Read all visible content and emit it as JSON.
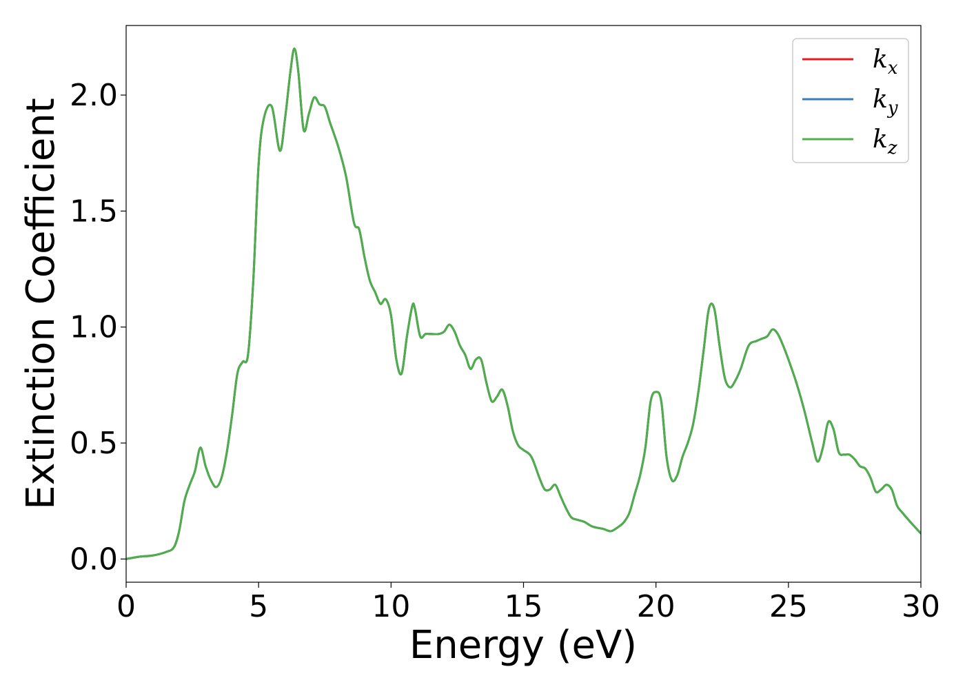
{
  "chart_data": {
    "type": "line",
    "xlabel": "Energy (eV)",
    "ylabel": "Extinction Coefficient",
    "xlim": [
      0,
      30
    ],
    "ylim": [
      -0.1,
      2.3
    ],
    "xticks": [
      0,
      5,
      10,
      15,
      20,
      25,
      30
    ],
    "xtick_labels": [
      "0",
      "5",
      "10",
      "15",
      "20",
      "25",
      "30"
    ],
    "yticks": [
      0.0,
      0.5,
      1.0,
      1.5,
      2.0
    ],
    "ytick_labels": [
      "0.0",
      "0.5",
      "1.0",
      "1.5",
      "2.0"
    ],
    "grid": false,
    "legend": {
      "placement": "top-right",
      "entries": [
        {
          "base": "k",
          "sub": "x",
          "color": "#e41a1c"
        },
        {
          "base": "k",
          "sub": "y",
          "color": "#377eb8"
        },
        {
          "base": "k",
          "sub": "z",
          "color": "#4daf4a"
        }
      ]
    },
    "x": [
      0,
      0.5,
      1.0,
      1.5,
      1.8,
      2.0,
      2.2,
      2.4,
      2.6,
      2.8,
      3.0,
      3.2,
      3.4,
      3.6,
      3.8,
      4.0,
      4.2,
      4.4,
      4.6,
      4.8,
      5.0,
      5.2,
      5.5,
      5.8,
      6.0,
      6.2,
      6.35,
      6.5,
      6.7,
      6.9,
      7.1,
      7.3,
      7.5,
      7.7,
      8.0,
      8.3,
      8.6,
      8.8,
      9.0,
      9.2,
      9.4,
      9.6,
      9.8,
      10.0,
      10.2,
      10.4,
      10.6,
      10.8,
      10.9,
      11.1,
      11.3,
      11.5,
      11.8,
      12.0,
      12.2,
      12.4,
      12.6,
      12.8,
      13.0,
      13.2,
      13.4,
      13.6,
      13.8,
      14.0,
      14.2,
      14.4,
      14.6,
      14.8,
      15.0,
      15.3,
      15.6,
      15.8,
      16.0,
      16.2,
      16.4,
      16.6,
      16.8,
      17.0,
      17.3,
      17.6,
      18.0,
      18.3,
      18.6,
      18.8,
      19.0,
      19.2,
      19.4,
      19.6,
      19.8,
      20.0,
      20.2,
      20.4,
      20.6,
      20.8,
      21.0,
      21.2,
      21.4,
      21.6,
      21.8,
      22.0,
      22.2,
      22.4,
      22.6,
      22.8,
      23.0,
      23.2,
      23.5,
      23.8,
      24.0,
      24.2,
      24.4,
      24.6,
      24.8,
      25.0,
      25.3,
      25.6,
      25.9,
      26.1,
      26.3,
      26.5,
      26.7,
      26.9,
      27.1,
      27.3,
      27.5,
      27.7,
      27.9,
      28.1,
      28.3,
      28.5,
      28.7,
      28.9,
      29.1,
      29.3,
      29.6,
      30.0
    ],
    "series": [
      {
        "name": "k_x",
        "color": "#e41a1c",
        "values": [
          0.0,
          0.01,
          0.015,
          0.03,
          0.05,
          0.12,
          0.25,
          0.32,
          0.38,
          0.48,
          0.4,
          0.34,
          0.31,
          0.35,
          0.46,
          0.62,
          0.8,
          0.85,
          0.88,
          1.2,
          1.7,
          1.9,
          1.95,
          1.76,
          1.9,
          2.1,
          2.2,
          2.1,
          1.85,
          1.92,
          1.99,
          1.96,
          1.95,
          1.88,
          1.78,
          1.65,
          1.45,
          1.42,
          1.3,
          1.2,
          1.15,
          1.1,
          1.12,
          1.05,
          0.86,
          0.8,
          0.96,
          1.09,
          1.08,
          0.96,
          0.97,
          0.97,
          0.97,
          0.98,
          1.01,
          0.98,
          0.92,
          0.88,
          0.82,
          0.86,
          0.86,
          0.76,
          0.68,
          0.7,
          0.73,
          0.66,
          0.55,
          0.49,
          0.47,
          0.44,
          0.35,
          0.3,
          0.3,
          0.32,
          0.27,
          0.22,
          0.18,
          0.17,
          0.16,
          0.14,
          0.13,
          0.12,
          0.14,
          0.16,
          0.2,
          0.28,
          0.36,
          0.48,
          0.68,
          0.72,
          0.68,
          0.44,
          0.34,
          0.36,
          0.44,
          0.5,
          0.58,
          0.72,
          0.9,
          1.08,
          1.08,
          0.92,
          0.78,
          0.74,
          0.77,
          0.82,
          0.92,
          0.94,
          0.95,
          0.96,
          0.99,
          0.97,
          0.92,
          0.86,
          0.76,
          0.64,
          0.5,
          0.42,
          0.48,
          0.59,
          0.56,
          0.46,
          0.45,
          0.45,
          0.43,
          0.4,
          0.39,
          0.35,
          0.29,
          0.3,
          0.32,
          0.3,
          0.23,
          0.2,
          0.16,
          0.11
        ]
      },
      {
        "name": "k_y",
        "color": "#377eb8",
        "values": [
          0.0,
          0.01,
          0.015,
          0.03,
          0.05,
          0.12,
          0.25,
          0.32,
          0.38,
          0.48,
          0.4,
          0.34,
          0.31,
          0.35,
          0.46,
          0.62,
          0.8,
          0.85,
          0.88,
          1.2,
          1.7,
          1.9,
          1.95,
          1.76,
          1.9,
          2.1,
          2.2,
          2.1,
          1.85,
          1.92,
          1.99,
          1.96,
          1.95,
          1.88,
          1.78,
          1.65,
          1.45,
          1.42,
          1.3,
          1.2,
          1.15,
          1.1,
          1.12,
          1.05,
          0.86,
          0.8,
          0.96,
          1.09,
          1.08,
          0.96,
          0.97,
          0.97,
          0.97,
          0.98,
          1.01,
          0.98,
          0.92,
          0.88,
          0.82,
          0.86,
          0.86,
          0.76,
          0.68,
          0.7,
          0.73,
          0.66,
          0.55,
          0.49,
          0.47,
          0.44,
          0.35,
          0.3,
          0.3,
          0.32,
          0.27,
          0.22,
          0.18,
          0.17,
          0.16,
          0.14,
          0.13,
          0.12,
          0.14,
          0.16,
          0.2,
          0.28,
          0.36,
          0.48,
          0.68,
          0.72,
          0.68,
          0.44,
          0.34,
          0.36,
          0.44,
          0.5,
          0.58,
          0.72,
          0.9,
          1.08,
          1.08,
          0.92,
          0.78,
          0.74,
          0.77,
          0.82,
          0.92,
          0.94,
          0.95,
          0.96,
          0.99,
          0.97,
          0.92,
          0.86,
          0.76,
          0.64,
          0.5,
          0.42,
          0.48,
          0.59,
          0.56,
          0.46,
          0.45,
          0.45,
          0.43,
          0.4,
          0.39,
          0.35,
          0.29,
          0.3,
          0.32,
          0.3,
          0.23,
          0.2,
          0.16,
          0.11
        ]
      },
      {
        "name": "k_z",
        "color": "#4daf4a",
        "values": [
          0.0,
          0.01,
          0.015,
          0.03,
          0.05,
          0.12,
          0.25,
          0.32,
          0.38,
          0.48,
          0.4,
          0.34,
          0.31,
          0.35,
          0.46,
          0.62,
          0.8,
          0.85,
          0.88,
          1.2,
          1.7,
          1.9,
          1.95,
          1.76,
          1.9,
          2.1,
          2.2,
          2.1,
          1.85,
          1.92,
          1.99,
          1.96,
          1.95,
          1.88,
          1.78,
          1.65,
          1.45,
          1.42,
          1.3,
          1.2,
          1.15,
          1.1,
          1.12,
          1.05,
          0.86,
          0.8,
          0.96,
          1.09,
          1.08,
          0.96,
          0.97,
          0.97,
          0.97,
          0.98,
          1.01,
          0.98,
          0.92,
          0.88,
          0.82,
          0.86,
          0.86,
          0.76,
          0.68,
          0.7,
          0.73,
          0.66,
          0.55,
          0.49,
          0.47,
          0.44,
          0.35,
          0.3,
          0.3,
          0.32,
          0.27,
          0.22,
          0.18,
          0.17,
          0.16,
          0.14,
          0.13,
          0.12,
          0.14,
          0.16,
          0.2,
          0.28,
          0.36,
          0.48,
          0.68,
          0.72,
          0.68,
          0.44,
          0.34,
          0.36,
          0.44,
          0.5,
          0.58,
          0.72,
          0.9,
          1.08,
          1.08,
          0.92,
          0.78,
          0.74,
          0.77,
          0.82,
          0.92,
          0.94,
          0.95,
          0.96,
          0.99,
          0.97,
          0.92,
          0.86,
          0.76,
          0.64,
          0.5,
          0.42,
          0.48,
          0.59,
          0.56,
          0.46,
          0.45,
          0.45,
          0.43,
          0.4,
          0.39,
          0.35,
          0.29,
          0.3,
          0.32,
          0.3,
          0.23,
          0.2,
          0.16,
          0.11
        ]
      }
    ]
  }
}
